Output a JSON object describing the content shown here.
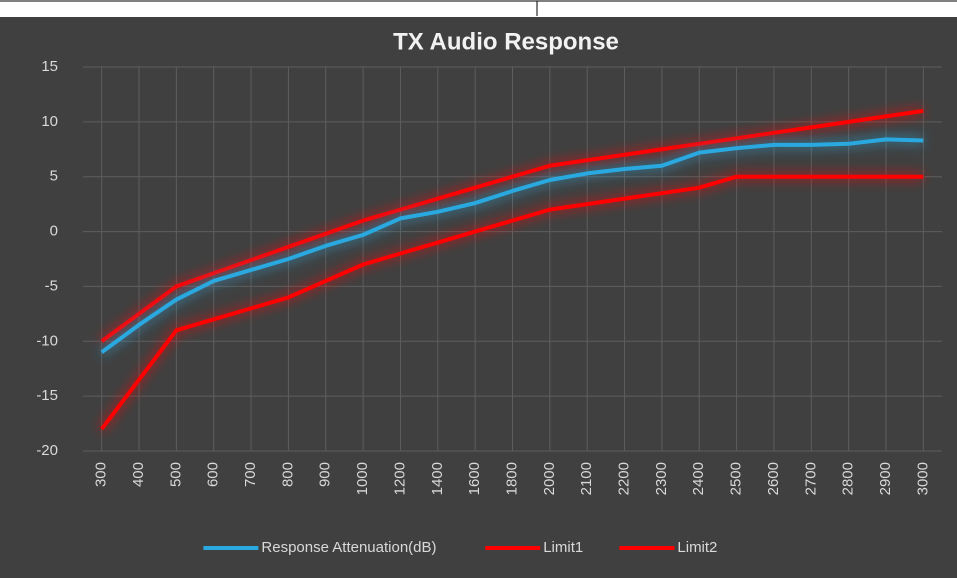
{
  "chart_data": {
    "type": "line",
    "title": "TX Audio Response",
    "categories": [
      "300",
      "400",
      "500",
      "600",
      "700",
      "800",
      "900",
      "1000",
      "1200",
      "1400",
      "1600",
      "1800",
      "2000",
      "2100",
      "2200",
      "2300",
      "2400",
      "2500",
      "2600",
      "2700",
      "2800",
      "2900",
      "3000"
    ],
    "series": [
      {
        "name": "Response Attenuation(dB)",
        "color": "#2aa9e0",
        "values": [
          -11,
          -8.5,
          -6.2,
          -4.5,
          -3.5,
          -2.5,
          -1.3,
          -0.3,
          1.2,
          1.8,
          2.6,
          3.7,
          4.7,
          5.3,
          5.7,
          6,
          7.2,
          7.6,
          7.9,
          7.9,
          8,
          8.4,
          8.3
        ]
      },
      {
        "name": "Limit1",
        "color": "#ff0000",
        "values": [
          -10,
          -7.5,
          -5,
          -3.8,
          -2.6,
          -1.4,
          -0.2,
          1,
          2,
          3,
          4,
          5,
          6,
          6.5,
          7,
          7.5,
          8,
          8.5,
          9,
          9.5,
          10,
          10.5,
          11
        ]
      },
      {
        "name": "Limit2",
        "color": "#ff0000",
        "values": [
          -18,
          -13.5,
          -9,
          -8,
          -7,
          -6,
          -4.5,
          -3,
          -2,
          -1,
          0,
          1,
          2,
          2.5,
          3,
          3.5,
          4,
          5,
          5,
          5,
          5,
          5,
          5
        ]
      }
    ],
    "ylim": [
      -20,
      15
    ],
    "yticks": [
      15,
      10,
      5,
      0,
      -5,
      -10,
      -15,
      -20
    ],
    "grid": true,
    "legend": "bottom"
  }
}
